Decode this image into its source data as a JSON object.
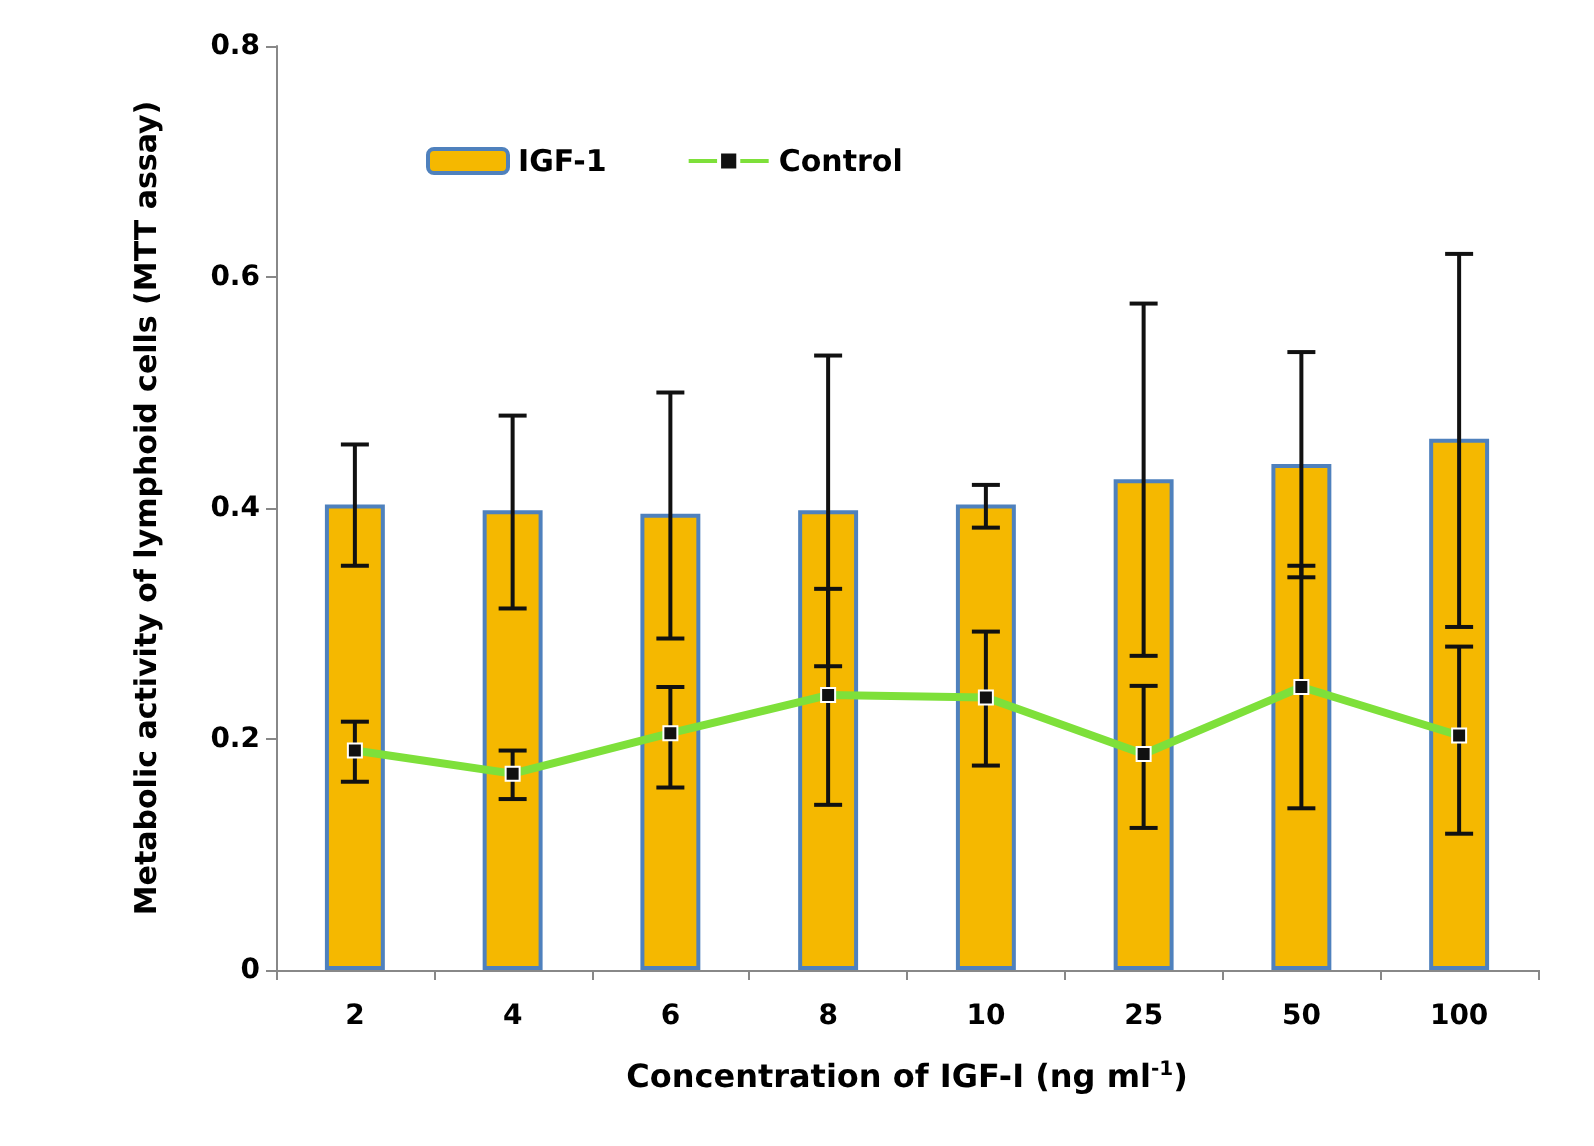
{
  "chart_data": {
    "type": "bar",
    "xlabel": "Concentration of IGF-I (ng ml$^{-1}$)",
    "ylabel": "Metabolic activity of lymphoid cells (MTT assay)",
    "categories": [
      "2",
      "4",
      "6",
      "8",
      "10",
      "25",
      "50",
      "100"
    ],
    "series": [
      {
        "name": "IGF-1",
        "color": "#f5b800",
        "values": [
          0.403,
          0.398,
          0.395,
          0.398,
          0.403,
          0.425,
          0.438,
          0.46
        ],
        "errors": [
          [
            0.35,
            0.455
          ],
          [
            0.313,
            0.48
          ],
          [
            0.287,
            0.5
          ],
          [
            0.263,
            0.532
          ],
          [
            0.383,
            0.42
          ],
          [
            0.272,
            0.577
          ],
          [
            0.34,
            0.535
          ],
          [
            0.297,
            0.62
          ]
        ]
      },
      {
        "name": "Control",
        "type": "line",
        "color": "#7ee03a",
        "marker": "square",
        "values": [
          0.19,
          0.17,
          0.205,
          0.238,
          0.236,
          0.187,
          0.245,
          0.203
        ],
        "errors": [
          [
            0.163,
            0.215
          ],
          [
            0.148,
            0.19
          ],
          [
            0.158,
            0.245
          ],
          [
            0.143,
            0.33
          ],
          [
            0.177,
            0.293
          ],
          [
            0.123,
            0.246
          ],
          [
            0.14,
            0.35
          ],
          [
            0.118,
            0.28
          ]
        ]
      }
    ],
    "ylim": [
      0,
      0.8
    ],
    "yticks": [
      0,
      0.2,
      0.4,
      0.6,
      0.8
    ],
    "legend": "top left",
    "grid": false
  }
}
